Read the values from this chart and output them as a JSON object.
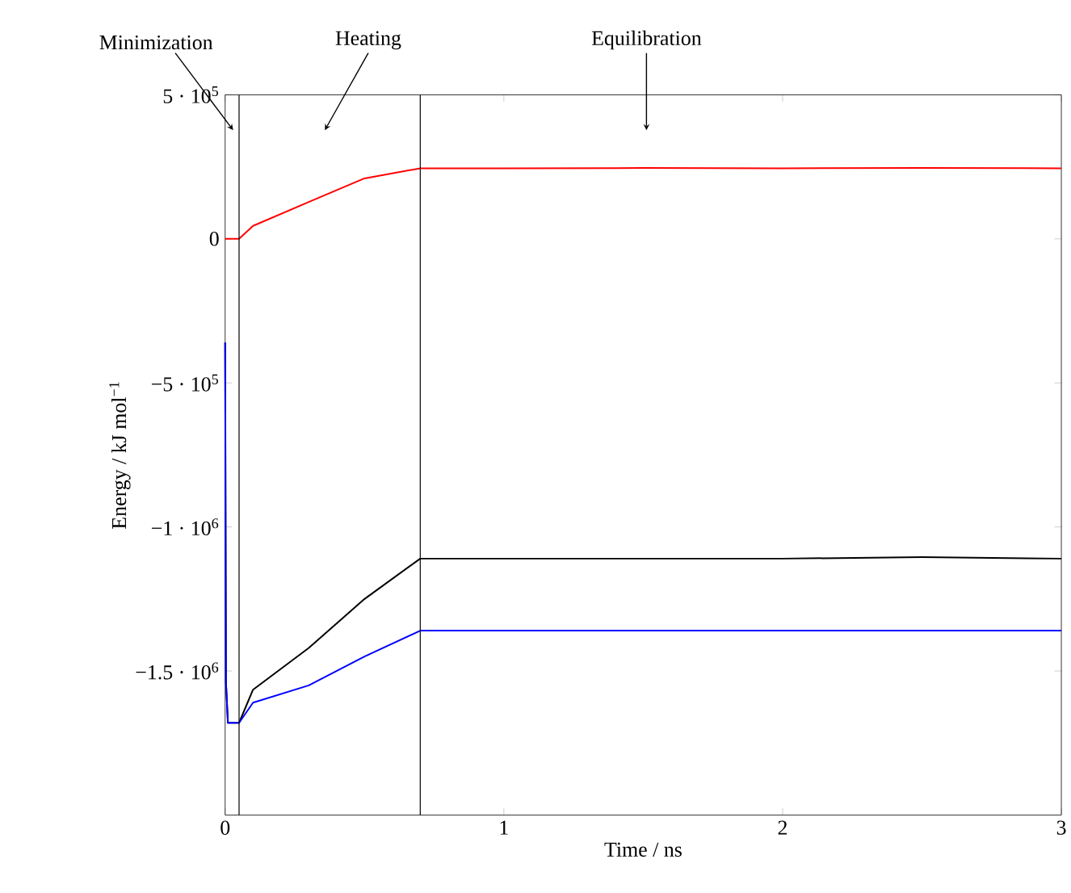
{
  "chart_data": {
    "type": "line",
    "xlabel": "Time / ns",
    "ylabel": "Energy / kJ mol$^{−1}$",
    "xlim": [
      0,
      3
    ],
    "ylim": [
      -2000000,
      500000
    ],
    "xticks": [
      0,
      1,
      2,
      3
    ],
    "yticks": [
      {
        "value": 500000,
        "label": "5 · 10$^{5}$"
      },
      0,
      {
        "value": -500000,
        "label": "−5 · 10$^{5}$"
      },
      {
        "value": -1000000,
        "label": "−1 · 10$^{6}$"
      },
      {
        "value": -1500000,
        "label": "−1.5 · 10$^{6}$"
      }
    ],
    "grid": false,
    "marker": "none",
    "line_style": "solid",
    "series": [
      {
        "color": "#ff0000",
        "x": [
          0,
          0.05,
          0.1,
          0.3,
          0.5,
          0.7,
          1.0,
          1.5,
          2.0,
          2.5,
          3.0
        ],
        "values": [
          0,
          0,
          45000,
          128000,
          210000,
          245000,
          245000,
          246000,
          245000,
          246000,
          245000
        ]
      },
      {
        "color": "#000000",
        "x": [
          0,
          0.003,
          0.01,
          0.05,
          0.1,
          0.3,
          0.5,
          0.7,
          1.0,
          1.5,
          2.0,
          2.5,
          3.0
        ],
        "values": [
          -360000,
          -1540000,
          -1680000,
          -1680000,
          -1565000,
          -1420000,
          -1250000,
          -1110000,
          -1110000,
          -1110000,
          -1110000,
          -1105000,
          -1110000
        ]
      },
      {
        "color": "#0000ff",
        "x": [
          0,
          0.003,
          0.01,
          0.05,
          0.1,
          0.3,
          0.5,
          0.7,
          1.0,
          1.5,
          2.0,
          2.5,
          3.0
        ],
        "values": [
          -360000,
          -1540000,
          -1680000,
          -1680000,
          -1610000,
          -1550000,
          -1450000,
          -1360000,
          -1360000,
          -1360000,
          -1360000,
          -1360000,
          -1360000
        ]
      }
    ],
    "ref_lines": [
      {
        "axis": "x",
        "value": 0.05,
        "color": "#000000"
      },
      {
        "axis": "x",
        "value": 0.7,
        "color": "#000000"
      }
    ],
    "annotations": [
      "Minimization",
      "Heating",
      "Equilibration"
    ]
  }
}
